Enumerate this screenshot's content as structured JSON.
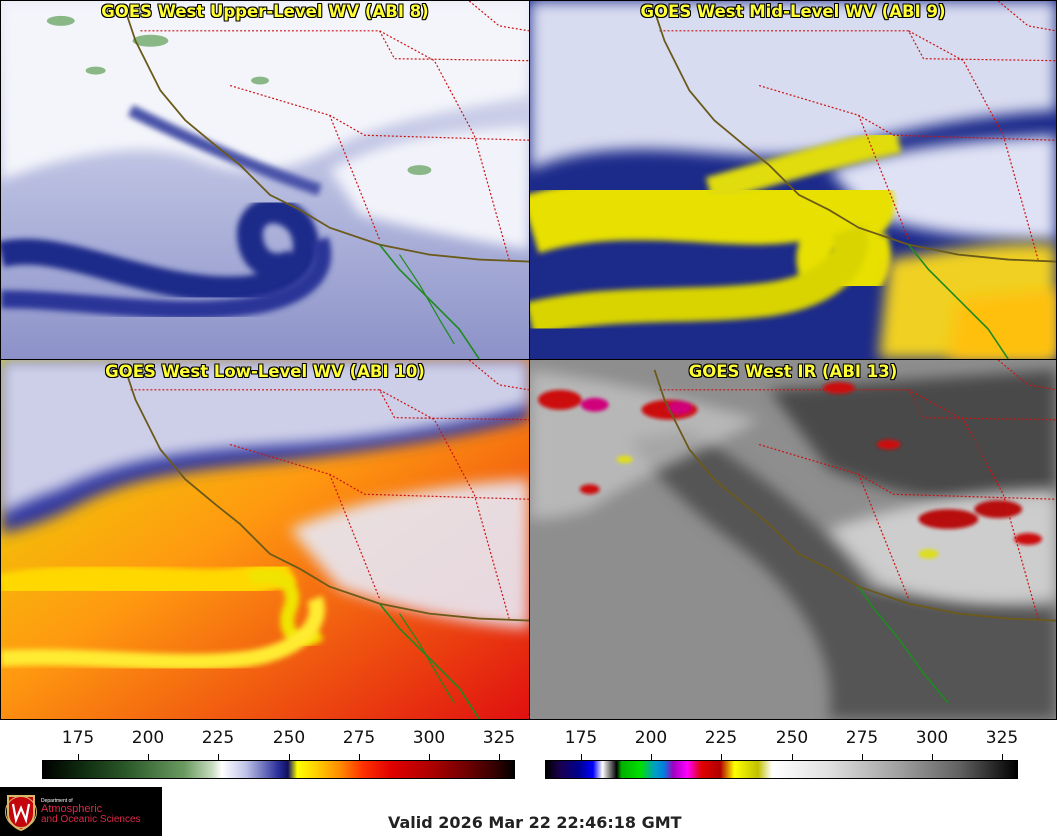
{
  "panels": [
    {
      "title": "GOES West Upper-Level WV (ABI 8)"
    },
    {
      "title": "GOES West Mid-Level WV (ABI 9)"
    },
    {
      "title": "GOES West Low-Level WV (ABI 10)"
    },
    {
      "title": "GOES West IR (ABI 13)"
    }
  ],
  "colorbar_left": {
    "ticks": [
      "175",
      "200",
      "225",
      "250",
      "275",
      "300",
      "325"
    ]
  },
  "colorbar_right": {
    "ticks": [
      "175",
      "200",
      "225",
      "250",
      "275",
      "300",
      "325"
    ]
  },
  "logo": {
    "line1": "Department of",
    "line2": "Atmospheric",
    "line3": "and Oceanic Sciences"
  },
  "footer": {
    "valid_time": "Valid 2026 Mar 22 22:46:18 GMT"
  },
  "colors": {
    "title_text": "#ffff33",
    "border_state": "#cc1111",
    "coastline": "#6b5a1a",
    "coast_green": "#1f8a1f"
  }
}
